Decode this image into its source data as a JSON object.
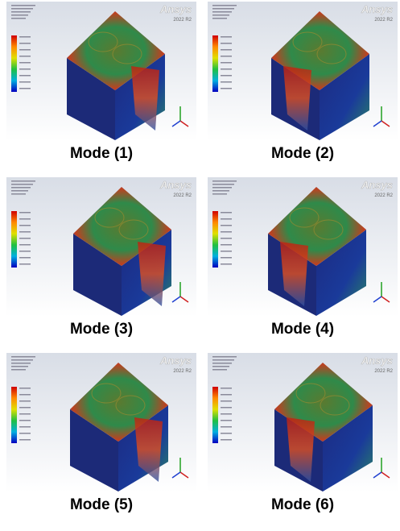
{
  "panels": [
    {
      "logo": "Ansys",
      "version": "2022 R2",
      "caption": "Mode (1)"
    },
    {
      "logo": "Ansys",
      "version": "2022 R2",
      "caption": "Mode (2)"
    },
    {
      "logo": "Ansys",
      "version": "2022 R2",
      "caption": "Mode (3)"
    },
    {
      "logo": "Ansys",
      "version": "2022 R2",
      "caption": "Mode (4)"
    },
    {
      "logo": "Ansys",
      "version": "2022 R2",
      "caption": "Mode (5)"
    },
    {
      "logo": "Ansys",
      "version": "2022 R2",
      "caption": "Mode (6)"
    }
  ]
}
